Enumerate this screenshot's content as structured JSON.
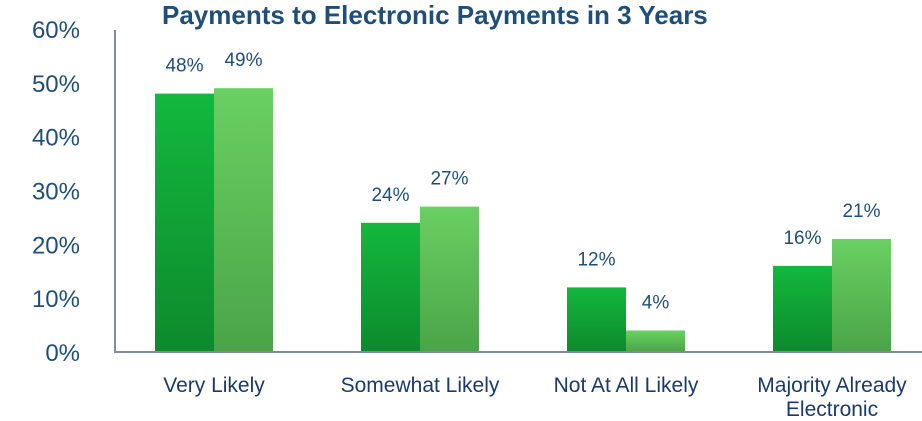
{
  "chart_data": {
    "type": "bar",
    "title": "Payments to Electronic Payments in 3 Years",
    "categories": [
      [
        "Very Likely"
      ],
      [
        "Somewhat Likely"
      ],
      [
        "Not At All Likely"
      ],
      [
        "Majority Already",
        "Electronic"
      ]
    ],
    "series": [
      {
        "values": [
          48,
          24,
          12,
          16
        ],
        "data_labels": [
          "48%",
          "24%",
          "12%",
          "16%"
        ]
      },
      {
        "values": [
          49,
          27,
          4,
          21
        ],
        "data_labels": [
          "49%",
          "27%",
          "4%",
          "21%"
        ]
      }
    ],
    "ylim": [
      0,
      60
    ],
    "yticks": [
      0,
      10,
      20,
      30,
      40,
      50,
      60
    ],
    "ytick_labels": [
      "0%",
      "10%",
      "20%",
      "30%",
      "40%",
      "50%",
      "60%"
    ],
    "xlabel": "",
    "ylabel": "",
    "grid": false,
    "colors": {
      "series1": "#119b33",
      "series2": "#5cbc55",
      "axis": "#7f8c9a",
      "text": "#1f4e79"
    }
  }
}
